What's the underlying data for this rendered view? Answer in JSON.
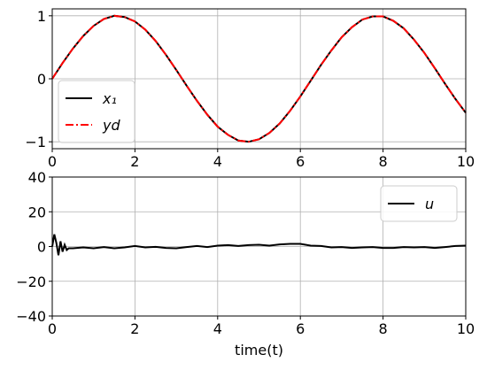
{
  "chart_data": [
    {
      "type": "line",
      "legend": "lower left",
      "grid": true,
      "x": [
        0,
        0.25,
        0.5,
        0.75,
        1,
        1.25,
        1.5,
        1.75,
        2,
        2.25,
        2.5,
        2.75,
        3,
        3.25,
        3.5,
        3.75,
        4,
        4.25,
        4.5,
        4.75,
        5,
        5.25,
        5.5,
        5.75,
        6,
        6.25,
        6.5,
        6.75,
        7,
        7.25,
        7.5,
        7.75,
        8,
        8.25,
        8.5,
        8.75,
        9,
        9.25,
        9.5,
        9.75,
        10
      ],
      "xlim": [
        0,
        10
      ],
      "xticks": [
        0,
        2,
        4,
        6,
        8,
        10
      ],
      "ylim": [
        -1.11,
        1.11
      ],
      "yticks": [
        {
          "value": -1,
          "label": "−1"
        },
        0,
        1
      ],
      "series": [
        {
          "name": "x₁",
          "color": "#000000",
          "style": "solid",
          "values": [
            0,
            0.25,
            0.48,
            0.68,
            0.84,
            0.95,
            1,
            0.98,
            0.91,
            0.78,
            0.6,
            0.38,
            0.14,
            -0.11,
            -0.35,
            -0.57,
            -0.76,
            -0.89,
            -0.98,
            -1,
            -0.96,
            -0.86,
            -0.71,
            -0.51,
            -0.28,
            -0.03,
            0.22,
            0.45,
            0.66,
            0.82,
            0.94,
            0.99,
            0.99,
            0.92,
            0.8,
            0.62,
            0.41,
            0.17,
            -0.08,
            -0.32,
            -0.54
          ]
        },
        {
          "name": "yd",
          "color": "#ff0000",
          "style": "dashdot",
          "values": [
            0,
            0.25,
            0.48,
            0.68,
            0.84,
            0.95,
            1,
            0.98,
            0.91,
            0.78,
            0.6,
            0.38,
            0.14,
            -0.11,
            -0.35,
            -0.57,
            -0.76,
            -0.89,
            -0.98,
            -1,
            -0.96,
            -0.86,
            -0.71,
            -0.51,
            -0.28,
            -0.03,
            0.22,
            0.45,
            0.66,
            0.82,
            0.94,
            0.99,
            0.99,
            0.92,
            0.8,
            0.62,
            0.41,
            0.17,
            -0.08,
            -0.32,
            -0.54
          ]
        }
      ]
    },
    {
      "type": "line",
      "legend": "upper right",
      "grid": true,
      "x_label": "time(t)",
      "x": [
        0,
        0.05,
        0.1,
        0.15,
        0.2,
        0.25,
        0.3,
        0.35,
        0.4,
        0.5,
        0.75,
        1,
        1.25,
        1.5,
        1.75,
        2,
        2.25,
        2.5,
        2.75,
        3,
        3.25,
        3.5,
        3.75,
        4,
        4.25,
        4.5,
        4.75,
        5,
        5.25,
        5.5,
        5.75,
        6,
        6.25,
        6.5,
        6.75,
        7,
        7.25,
        7.5,
        7.75,
        8,
        8.25,
        8.5,
        8.75,
        9,
        9.25,
        9.5,
        9.75,
        10
      ],
      "xlim": [
        0,
        10
      ],
      "xticks": [
        0,
        2,
        4,
        6,
        8,
        10
      ],
      "ylim": [
        -40,
        40
      ],
      "yticks": [
        {
          "value": -40,
          "label": "−40"
        },
        {
          "value": -20,
          "label": "−20"
        },
        0,
        20,
        40
      ],
      "series": [
        {
          "name": "u",
          "color": "#000000",
          "style": "solid",
          "values": [
            0,
            7,
            2,
            -5,
            3,
            -3,
            1,
            -2,
            -1,
            -1,
            -0.5,
            -1,
            -0.3,
            -1,
            -0.5,
            0.3,
            -0.5,
            -0.2,
            -0.8,
            -1,
            -0.3,
            0.3,
            -0.3,
            0.5,
            0.8,
            0.3,
            0.8,
            1,
            0.5,
            1.2,
            1.5,
            1.5,
            0.5,
            0.3,
            -0.5,
            -0.3,
            -0.8,
            -0.5,
            -0.3,
            -0.8,
            -0.8,
            -0.3,
            -0.5,
            -0.3,
            -0.8,
            -0.3,
            0.3,
            0.5
          ]
        }
      ]
    }
  ]
}
